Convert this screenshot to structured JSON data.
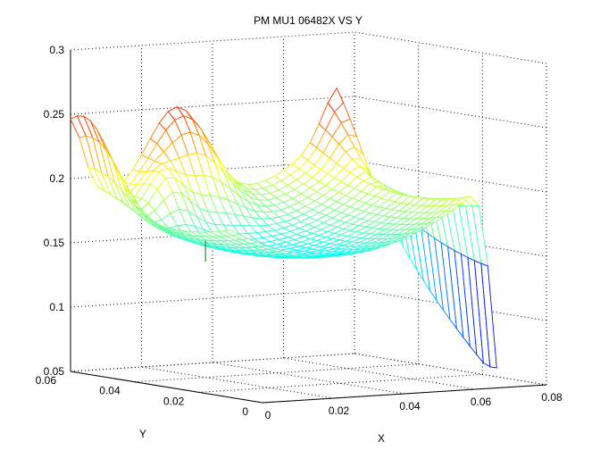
{
  "chart_data": {
    "type": "surface",
    "title": "PM MU1 06482X VS Y",
    "xlabel": "X",
    "ylabel": "Y",
    "zlabel": "",
    "xlim": [
      0,
      0.08
    ],
    "ylim": [
      0,
      0.06
    ],
    "zlim": [
      0.05,
      0.3
    ],
    "x_ticks": [
      "0",
      "0.02",
      "0.04",
      "0.06",
      "0.08"
    ],
    "y_ticks": [
      "0",
      "0.02",
      "0.04",
      "0.06"
    ],
    "z_ticks": [
      "0.05",
      "0.1",
      "0.15",
      "0.2",
      "0.25",
      "0.3"
    ],
    "grid": true,
    "colormap": "jet",
    "surface_model": {
      "grid_x": [
        0,
        0.075
      ],
      "grid_y": [
        0.01,
        0.06
      ],
      "x_divisions": 30,
      "y_divisions": 24,
      "base_min": 0.148,
      "bowl_center": [
        0.03,
        0.028
      ],
      "features": [
        {
          "name": "far-corner-peak",
          "x": 0.075,
          "y": 0.06,
          "value": 0.265
        },
        {
          "name": "back-ridge-peak",
          "x": 0.03,
          "y": 0.06,
          "value": 0.275
        },
        {
          "name": "left-front-peak",
          "x": 0.0,
          "y": 0.055,
          "value": 0.255
        },
        {
          "name": "right-edge-drop",
          "x": 0.075,
          "y": 0.015,
          "value": 0.07
        },
        {
          "name": "inner-spike",
          "x": 0.02,
          "y": 0.04,
          "value": 0.14
        }
      ]
    }
  }
}
